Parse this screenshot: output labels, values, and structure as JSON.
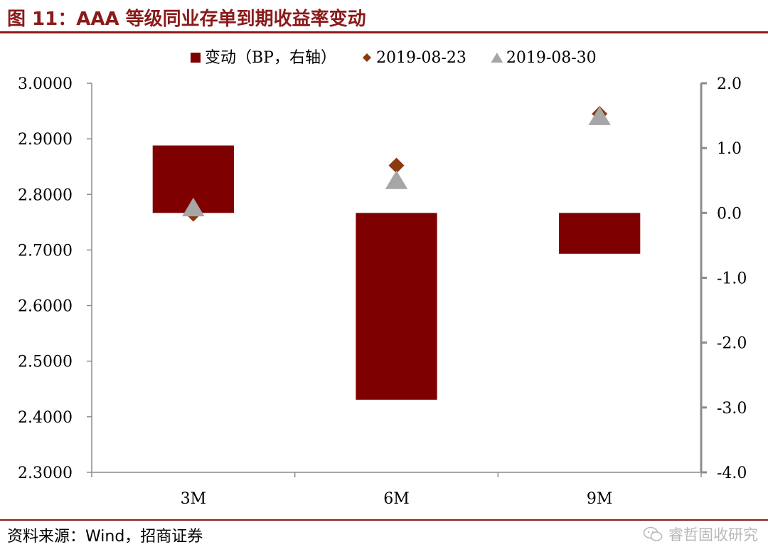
{
  "header": {
    "title": "图 11：AAA 等级同业存单到期收益率变动"
  },
  "footer": {
    "source": "资料来源：Wind，招商证券",
    "watermark": "睿哲固收研究"
  },
  "colors": {
    "accent": "#8b1a1a",
    "bar": "#7f0000",
    "diamond": "#8b3a0f",
    "triangle": "#a6a6a6",
    "axis": "#8c8c8c"
  },
  "chart_data": {
    "type": "bar",
    "categories": [
      "3M",
      "6M",
      "9M"
    ],
    "series": [
      {
        "name": "变动（BP，右轴）",
        "kind": "bar",
        "axis": "right",
        "values": [
          1.04,
          -2.88,
          -0.63
        ]
      },
      {
        "name": "2019-08-23",
        "kind": "diamond",
        "axis": "left",
        "values": [
          2.765,
          2.852,
          2.945
        ]
      },
      {
        "name": "2019-08-30",
        "kind": "triangle",
        "axis": "left",
        "values": [
          2.775,
          2.824,
          2.939
        ]
      }
    ],
    "left_axis": {
      "min": 2.3,
      "max": 3.0,
      "step": 0.1,
      "decimals": 4,
      "ticks": [
        "3.0000",
        "2.9000",
        "2.8000",
        "2.7000",
        "2.6000",
        "2.5000",
        "2.4000",
        "2.3000"
      ]
    },
    "right_axis": {
      "min": -4.0,
      "max": 2.0,
      "step": 1.0,
      "decimals": 1,
      "ticks": [
        "2.0",
        "1.0",
        "0.0",
        "-1.0",
        "-2.0",
        "-3.0",
        "-4.0"
      ]
    },
    "legend": {
      "placement": "top"
    },
    "grid": false
  }
}
